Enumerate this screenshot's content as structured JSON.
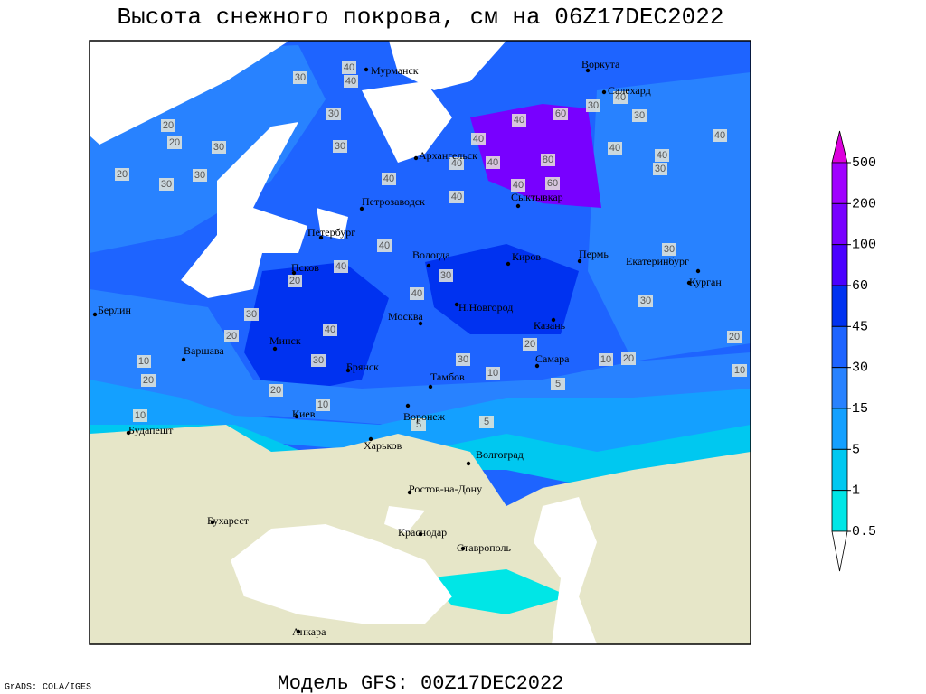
{
  "title": "Высота снежного покрова, см на 06Z17DEC2022",
  "footer": "Модель GFS: 00Z17DEC2022",
  "credit": "GrADS: COLA/IGES",
  "cities": [
    "Мурманск",
    "Воркута",
    "Салехард",
    "Архангельск",
    "Сыктывкар",
    "Петрозаводск",
    "Петербург",
    "Вологда",
    "Киров",
    "Пермь",
    "Екатеринбург",
    "Курган",
    "Псков",
    "Н.Новгород",
    "Москва",
    "Казань",
    "Берлин",
    "Минск",
    "Варшава",
    "Самара",
    "Брянск",
    "Тамбов",
    "Киев",
    "Воронеж",
    "Будапешт",
    "Харьков",
    "Волгоград",
    "Ростов-на-Дону",
    "Бухарест",
    "Краснодар",
    "Ставрополь",
    "Анкара"
  ],
  "contour_labels": [
    30,
    40,
    40,
    30,
    20,
    20,
    30,
    30,
    20,
    30,
    30,
    40,
    60,
    40,
    80,
    60,
    40,
    40,
    40,
    40,
    30,
    30,
    40,
    40,
    30,
    40,
    40,
    40,
    30,
    30,
    20,
    10,
    20,
    10,
    20,
    30,
    10,
    10,
    20,
    30,
    40,
    10,
    5,
    5,
    20,
    30,
    40,
    20,
    5,
    10,
    40,
    40,
    30,
    20
  ],
  "colorbar": {
    "levels": [
      500,
      200,
      100,
      60,
      45,
      30,
      15,
      5,
      1,
      0.5
    ],
    "colors": [
      "#dc00dc",
      "#a000ff",
      "#7800ff",
      "#4a00ff",
      "#0032f0",
      "#1e64ff",
      "#2882ff",
      "#14a0ff",
      "#00c8f0",
      "#00e6e6",
      "#ffffff"
    ]
  }
}
